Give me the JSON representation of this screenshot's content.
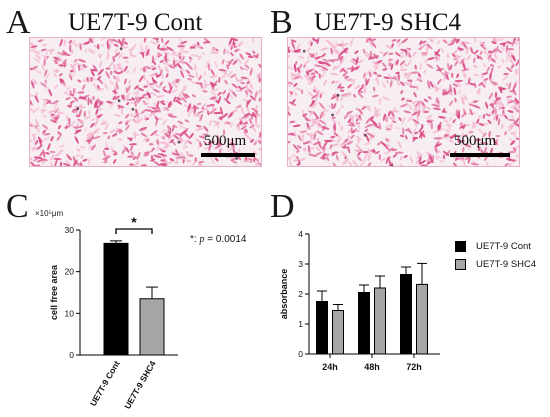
{
  "panels": {
    "A": {
      "letter": "A",
      "title": "UE7T-9 Cont",
      "scale_label": "500μm"
    },
    "B": {
      "letter": "B",
      "title": "UE7T-9 SHC4",
      "scale_label": "500μm"
    },
    "C": {
      "letter": "C",
      "unit_prefix": "×10⁵μm",
      "sig_mark": "*",
      "sig_note_prefix": "*: ",
      "sig_note_p": "p",
      "sig_note_value": " = 0.0014"
    },
    "D": {
      "letter": "D"
    }
  },
  "colors": {
    "stain": "#d94a86",
    "stain_light": "#f2b7cf",
    "cont_bar": "#000000",
    "shc4_bar": "#a6a6a6"
  },
  "chart_data": [
    {
      "type": "bar",
      "panel": "C",
      "categories": [
        "UE7T-9 Cont",
        "UE7T-9 SHC4"
      ],
      "values": [
        26.8,
        13.5
      ],
      "errors": [
        0.6,
        2.8
      ],
      "ylabel": "cell free area",
      "ylim": [
        0,
        30
      ],
      "yticks": [
        0,
        10,
        20,
        30
      ],
      "significance": {
        "between": [
          0,
          1
        ],
        "mark": "*",
        "p": 0.0014
      }
    },
    {
      "type": "bar",
      "panel": "D",
      "categories": [
        "24h",
        "48h",
        "72h"
      ],
      "series": [
        {
          "name": "UE7T-9 Cont",
          "values": [
            1.75,
            2.05,
            2.65
          ],
          "errors": [
            0.35,
            0.25,
            0.25
          ]
        },
        {
          "name": "UE7T-9 SHC4",
          "values": [
            1.45,
            2.2,
            2.32
          ],
          "errors": [
            0.2,
            0.4,
            0.7
          ]
        }
      ],
      "ylabel": "absorbance",
      "ylim": [
        0,
        4
      ],
      "yticks": [
        0,
        1,
        2,
        3,
        4
      ],
      "legend": "right"
    }
  ]
}
